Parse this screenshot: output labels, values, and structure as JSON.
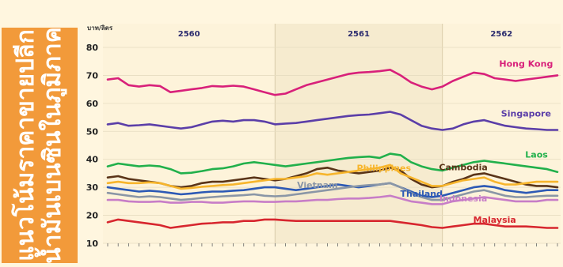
{
  "side_title": "แนวโน้มราคาขายปลีก\nน้ำมันเบนซินในภูมิภาค",
  "colors": {
    "background": "#fff6df",
    "side_panel": "#f29a3a",
    "band_even": "#fdf3da",
    "band_odd": "#f6ebcf",
    "grid": "#e6dcc0"
  },
  "chart_data": {
    "type": "line",
    "ylabel": "บาท/ลิตร",
    "ylim": [
      10,
      80
    ],
    "yticks": [
      10,
      20,
      30,
      40,
      50,
      60,
      70,
      80
    ],
    "x_count": 44,
    "periods": [
      {
        "label": "2560",
        "start": 0,
        "end": 16
      },
      {
        "label": "2561",
        "start": 16,
        "end": 32
      },
      {
        "label": "2562",
        "start": 32,
        "end": 43
      }
    ],
    "series": [
      {
        "name": "Hong Kong",
        "color": "#d8207a",
        "values": [
          68.5,
          69.0,
          66.5,
          66.0,
          66.5,
          66.2,
          64.0,
          64.5,
          65.0,
          65.5,
          66.2,
          66.0,
          66.3,
          66.0,
          65.0,
          64.0,
          63.0,
          63.5,
          65.0,
          66.5,
          67.5,
          68.5,
          69.5,
          70.5,
          71.0,
          71.2,
          71.5,
          72.0,
          70.0,
          67.5,
          66.0,
          65.0,
          66.0,
          68.0,
          69.5,
          71.0,
          70.5,
          69.0,
          68.5,
          68.0,
          68.5,
          69.0,
          69.5,
          70.0
        ]
      },
      {
        "name": "Singapore",
        "color": "#5b3ea8",
        "values": [
          52.5,
          53.0,
          52.0,
          52.2,
          52.5,
          52.0,
          51.5,
          51.0,
          51.5,
          52.5,
          53.5,
          53.8,
          53.5,
          54.0,
          54.0,
          53.5,
          52.5,
          52.8,
          53.0,
          53.5,
          54.0,
          54.5,
          55.0,
          55.5,
          55.8,
          56.0,
          56.5,
          57.0,
          56.0,
          54.0,
          52.0,
          51.0,
          50.5,
          51.0,
          52.5,
          53.5,
          54.0,
          53.0,
          52.0,
          51.5,
          51.0,
          50.8,
          50.5,
          50.5
        ]
      },
      {
        "name": "Laos",
        "color": "#21b04b",
        "values": [
          37.5,
          38.5,
          38.0,
          37.5,
          37.8,
          37.5,
          36.5,
          35.0,
          35.2,
          35.8,
          36.5,
          36.8,
          37.5,
          38.5,
          39.0,
          38.5,
          38.0,
          37.5,
          38.0,
          38.5,
          39.0,
          39.5,
          40.0,
          40.5,
          40.8,
          41.0,
          40.5,
          42.0,
          41.5,
          39.0,
          37.5,
          36.5,
          36.0,
          37.0,
          38.0,
          39.0,
          39.5,
          39.0,
          38.5,
          38.0,
          37.5,
          37.0,
          36.5,
          35.5
        ]
      },
      {
        "name": "Cambodia",
        "color": "#5a3418",
        "values": [
          33.5,
          34.0,
          33.0,
          32.5,
          32.0,
          31.5,
          30.5,
          30.0,
          30.5,
          31.5,
          32.0,
          32.0,
          32.5,
          33.0,
          33.5,
          33.0,
          32.5,
          33.0,
          34.0,
          35.0,
          36.5,
          37.0,
          36.0,
          35.5,
          35.0,
          35.5,
          36.0,
          37.0,
          36.0,
          33.0,
          31.0,
          30.0,
          30.5,
          32.0,
          33.0,
          34.5,
          35.0,
          34.0,
          33.0,
          32.0,
          31.0,
          30.5,
          30.5,
          30.0
        ]
      },
      {
        "name": "Philippines",
        "color": "#f7b52c",
        "values": [
          31.5,
          32.0,
          31.5,
          31.5,
          31.8,
          31.5,
          30.5,
          29.5,
          29.8,
          30.2,
          30.5,
          30.8,
          31.0,
          31.5,
          32.0,
          32.5,
          33.0,
          33.0,
          33.5,
          34.0,
          35.0,
          34.5,
          35.0,
          35.5,
          36.0,
          36.5,
          37.0,
          38.0,
          35.0,
          33.5,
          32.0,
          30.5,
          30.5,
          31.5,
          32.5,
          33.0,
          33.5,
          32.0,
          31.0,
          31.0,
          31.5,
          32.0,
          32.0,
          32.0
        ]
      },
      {
        "name": "Thailand",
        "color": "#2c59b5",
        "values": [
          30.0,
          29.5,
          29.0,
          28.5,
          28.8,
          28.5,
          28.0,
          27.5,
          27.8,
          28.2,
          28.5,
          28.5,
          28.8,
          29.0,
          29.5,
          30.0,
          30.0,
          29.5,
          29.0,
          29.5,
          30.0,
          30.5,
          31.0,
          30.5,
          30.0,
          30.5,
          31.0,
          31.5,
          30.0,
          28.5,
          27.0,
          26.5,
          27.0,
          28.0,
          29.0,
          30.0,
          30.5,
          30.0,
          29.0,
          28.5,
          28.0,
          28.5,
          29.0,
          29.0
        ]
      },
      {
        "name": "Vietnam",
        "color": "#8a96a6",
        "values": [
          28.0,
          27.5,
          27.0,
          26.5,
          26.8,
          26.5,
          26.0,
          25.5,
          25.8,
          26.2,
          26.5,
          26.8,
          27.0,
          27.2,
          27.5,
          27.0,
          26.8,
          27.0,
          27.5,
          28.0,
          28.5,
          29.0,
          29.5,
          30.0,
          30.5,
          30.8,
          31.0,
          31.5,
          30.0,
          28.0,
          26.5,
          25.5,
          25.5,
          26.5,
          27.5,
          28.5,
          29.0,
          28.0,
          27.0,
          26.5,
          26.5,
          26.8,
          27.0,
          27.0
        ]
      },
      {
        "name": "Indonesia",
        "color": "#c77dc7",
        "values": [
          25.5,
          25.5,
          25.0,
          24.8,
          24.8,
          25.0,
          24.5,
          24.5,
          24.8,
          24.8,
          24.5,
          24.5,
          24.8,
          25.0,
          25.0,
          24.8,
          24.8,
          25.0,
          25.0,
          25.2,
          25.5,
          25.5,
          25.8,
          26.0,
          26.0,
          26.2,
          26.5,
          27.0,
          26.0,
          25.0,
          24.5,
          24.0,
          24.0,
          25.0,
          25.5,
          26.0,
          26.5,
          26.0,
          25.5,
          25.0,
          25.0,
          25.0,
          25.5,
          25.5
        ]
      },
      {
        "name": "Malaysia",
        "color": "#d7262e",
        "values": [
          17.5,
          18.5,
          18.0,
          17.5,
          17.0,
          16.5,
          15.5,
          16.0,
          16.5,
          17.0,
          17.2,
          17.5,
          17.5,
          18.0,
          18.0,
          18.5,
          18.5,
          18.2,
          18.0,
          18.0,
          18.0,
          18.0,
          18.0,
          18.0,
          18.0,
          18.0,
          18.0,
          18.0,
          17.5,
          17.0,
          16.5,
          15.8,
          15.5,
          16.0,
          16.5,
          17.0,
          17.0,
          16.5,
          16.0,
          16.0,
          16.0,
          15.8,
          15.5,
          15.5
        ]
      }
    ],
    "legend_labels": [
      {
        "series": 0,
        "text": "Hong Kong"
      },
      {
        "series": 1,
        "text": "Singapore"
      },
      {
        "series": 2,
        "text": "Laos"
      },
      {
        "series": 3,
        "text": "Cambodia"
      },
      {
        "series": 4,
        "text": "Philippines"
      },
      {
        "series": 5,
        "text": "Thailand"
      },
      {
        "series": 6,
        "text": "Vietnam"
      },
      {
        "series": 7,
        "text": "Indonesia"
      },
      {
        "series": 8,
        "text": "Malaysia"
      }
    ]
  }
}
